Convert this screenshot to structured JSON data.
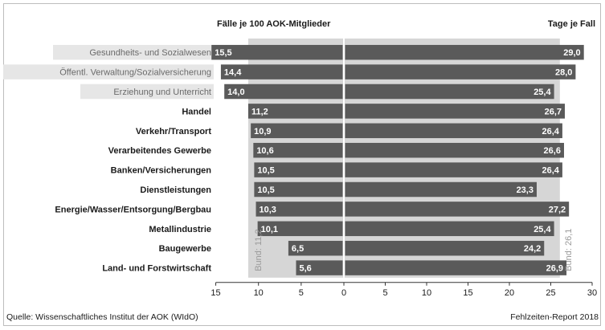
{
  "chart_data": {
    "type": "bar",
    "left_header": "Fälle je 100 AOK-Mitglieder",
    "right_header": "Tage je Fall",
    "categories": [
      "Gesundheits- und Sozialwesen",
      "Öffentl. Verwaltung/Sozialversicherung",
      "Erziehung und Unterricht",
      "Handel",
      "Verkehr/Transport",
      "Verarbeitendes Gewerbe",
      "Banken/Versicherungen",
      "Dienstleistungen",
      "Energie/Wasser/Entsorgung/Bergbau",
      "Metallindustrie",
      "Baugewerbe",
      "Land- und Forstwirtschaft"
    ],
    "highlighted_categories": [
      0,
      1,
      2
    ],
    "series": [
      {
        "name": "Fälle je 100 AOK-Mitglieder",
        "values": [
          15.5,
          14.4,
          14.0,
          11.2,
          10.9,
          10.6,
          10.5,
          10.5,
          10.3,
          10.1,
          6.5,
          5.6
        ],
        "labels": [
          "15,5",
          "14,4",
          "14,0",
          "11,2",
          "10,9",
          "10,6",
          "10,5",
          "10,5",
          "10,3",
          "10,1",
          "6,5",
          "5,6"
        ]
      },
      {
        "name": "Tage je Fall",
        "values": [
          29.0,
          28.0,
          25.4,
          26.7,
          26.4,
          26.6,
          26.4,
          23.3,
          27.2,
          25.4,
          24.2,
          26.9
        ],
        "labels": [
          "29,0",
          "28,0",
          "25,4",
          "26,7",
          "26,4",
          "26,6",
          "26,4",
          "23,3",
          "27,2",
          "25,4",
          "24,2",
          "26,9"
        ]
      }
    ],
    "reference_lines": [
      {
        "label": "Bund: 11,2",
        "value": 11.2,
        "side": "left"
      },
      {
        "label": "Bund: 26,1",
        "value": 26.1,
        "side": "right"
      }
    ],
    "xaxis": {
      "left_range": [
        15,
        0
      ],
      "right_range": [
        0,
        30
      ],
      "tick_labels": [
        "15",
        "10",
        "5",
        "0",
        "5",
        "10",
        "15",
        "20",
        "25",
        "30"
      ]
    },
    "colors": {
      "bar": "#5a5a5a",
      "reference_band": "#d6d6d6",
      "highlight": "#e6e6e6",
      "text": "#1a1a1a"
    }
  },
  "footer": {
    "source": "Quelle: Wissenschaftliches Institut der AOK (WIdO)",
    "report": "Fehlzeiten-Report 2018"
  }
}
